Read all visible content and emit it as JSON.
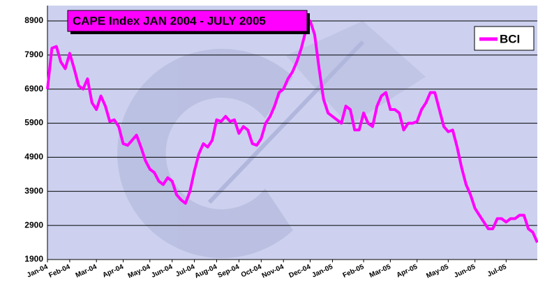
{
  "chart_data": {
    "type": "line",
    "title": "CAPE Index JAN 2004 - JULY 2005",
    "categories": [
      "Jan-04",
      null,
      null,
      null,
      null,
      "Feb-04",
      null,
      null,
      null,
      null,
      null,
      "Mar-04",
      null,
      null,
      null,
      null,
      null,
      "Apr-04",
      null,
      null,
      null,
      null,
      null,
      "May-04",
      null,
      null,
      null,
      null,
      "Jun-04",
      null,
      null,
      null,
      null,
      "Jul-04",
      null,
      null,
      null,
      null,
      "Aug-04",
      null,
      null,
      null,
      null,
      "Sep-04",
      null,
      null,
      null,
      null,
      "Oct-04",
      null,
      null,
      null,
      null,
      "Nov-04",
      null,
      null,
      null,
      null,
      null,
      "Dec-04",
      null,
      null,
      null,
      null,
      "Jan-05",
      null,
      null,
      null,
      null,
      null,
      null,
      "Feb-05",
      null,
      null,
      null,
      null,
      null,
      "Mar-05",
      null,
      null,
      null,
      null,
      null,
      "Apr-05",
      null,
      null,
      null,
      null,
      null,
      null,
      "May-05",
      null,
      null,
      null,
      null,
      null,
      "Jun-05",
      null,
      null,
      null,
      null,
      null,
      null,
      "Jul-05",
      null,
      null,
      null,
      null,
      null,
      null,
      null
    ],
    "series": [
      {
        "name": "BCI",
        "color": "#ff00ff",
        "values": [
          6900,
          8100,
          8150,
          7700,
          7500,
          7950,
          7500,
          7000,
          6900,
          7200,
          6500,
          6300,
          6700,
          6400,
          5950,
          6000,
          5800,
          5300,
          5250,
          5400,
          5550,
          5200,
          4800,
          4550,
          4450,
          4200,
          4100,
          4300,
          4200,
          3800,
          3650,
          3550,
          3900,
          4500,
          5000,
          5300,
          5200,
          5400,
          6000,
          5950,
          6100,
          5950,
          6000,
          5600,
          5800,
          5700,
          5300,
          5250,
          5450,
          5900,
          6100,
          6400,
          6800,
          6900,
          7200,
          7400,
          7700,
          8100,
          8600,
          8900,
          8500,
          7500,
          6600,
          6200,
          6100,
          6000,
          5900,
          6400,
          6300,
          5700,
          5700,
          6200,
          5900,
          5800,
          6400,
          6700,
          6800,
          6300,
          6300,
          6200,
          5700,
          5900,
          5900,
          5950,
          6300,
          6500,
          6800,
          6800,
          6300,
          5800,
          5650,
          5700,
          5200,
          4600,
          4100,
          3800,
          3400,
          3200,
          3000,
          2800,
          2800,
          3100,
          3100,
          3000,
          3100,
          3100,
          3200,
          3200,
          2800,
          2700,
          2400
        ]
      }
    ],
    "ylim": [
      1900,
      9350
    ],
    "yticks": [
      1900,
      2900,
      3900,
      4900,
      5900,
      6900,
      7900,
      8900
    ],
    "grid": true,
    "legend": "upper right"
  }
}
